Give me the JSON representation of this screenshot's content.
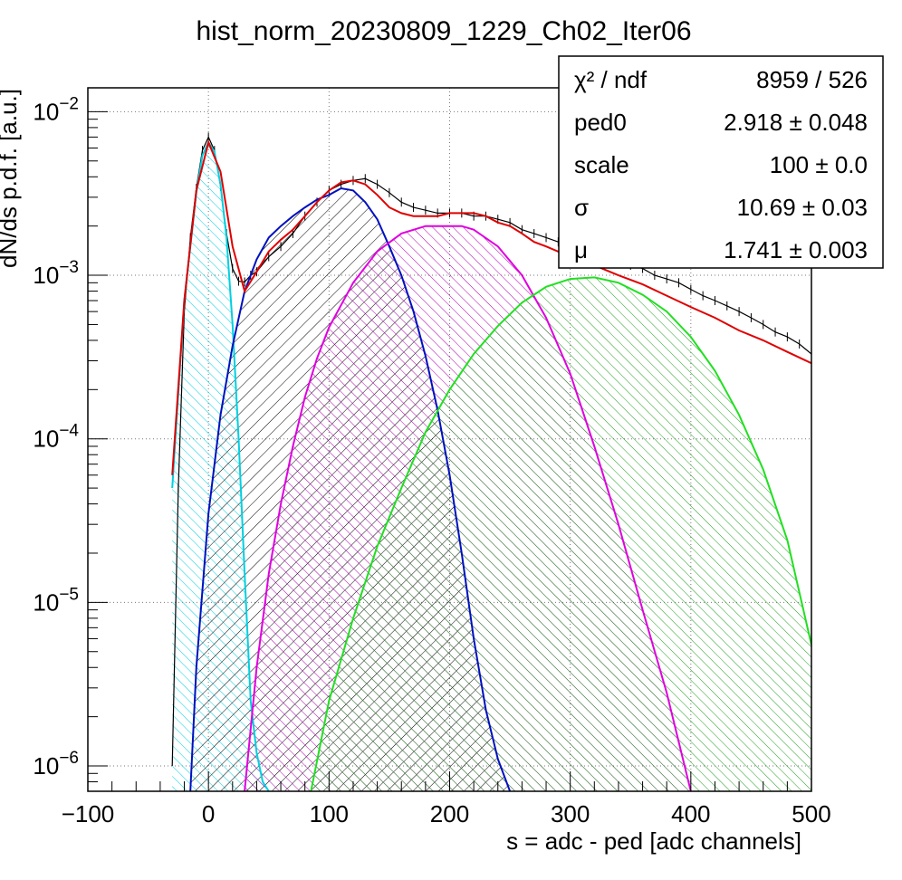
{
  "chart_data": {
    "type": "histogram_with_fit",
    "title": "hist_norm_20230809_1229_Ch02_Iter06",
    "xlabel": "s = adc - ped [adc channels]",
    "ylabel": "dN/ds p.d.f. [a.u.]",
    "xlim": [
      -100,
      500
    ],
    "ylim": [
      7e-07,
      0.014
    ],
    "yscale": "log",
    "grid": true,
    "x_ticks": [
      -100,
      0,
      100,
      200,
      300,
      400,
      500
    ],
    "x_tick_labels": [
      "−100",
      "0",
      "100",
      "200",
      "300",
      "400",
      "500"
    ],
    "y_ticks": [
      {
        "value": 1e-06,
        "mantissa": "10",
        "exponent": "−6"
      },
      {
        "value": 1e-05,
        "mantissa": "10",
        "exponent": "−5"
      },
      {
        "value": 0.0001,
        "mantissa": "10",
        "exponent": "−4"
      },
      {
        "value": 0.001,
        "mantissa": "10",
        "exponent": "−3"
      },
      {
        "value": 0.01,
        "mantissa": "10",
        "exponent": "−2"
      }
    ],
    "stats_box": {
      "placement": "top-right",
      "rows": [
        {
          "name": "χ² / ndf",
          "value": "8959 / 526"
        },
        {
          "name": "ped0",
          "value": "2.918 ± 0.048"
        },
        {
          "name": "scale",
          "value": "100 ± 0.0"
        },
        {
          "name": "σ",
          "value": "10.69 ± 0.03"
        },
        {
          "name": "μ",
          "value": "1.741 ± 0.003"
        }
      ]
    },
    "series": [
      {
        "kind": "histogram",
        "color": "#000000",
        "x": [
          -30,
          -25,
          -20,
          -15,
          -10,
          -5,
          0,
          5,
          10,
          15,
          20,
          25,
          30,
          35,
          40,
          50,
          60,
          70,
          80,
          90,
          100,
          110,
          120,
          130,
          140,
          150,
          160,
          170,
          180,
          190,
          200,
          210,
          220,
          230,
          240,
          250,
          260,
          270,
          280,
          290,
          300,
          310,
          320,
          330,
          340,
          350,
          360,
          370,
          380,
          390,
          400,
          410,
          420,
          430,
          440,
          450,
          460,
          470,
          480,
          490,
          500
        ],
        "y": [
          1e-06,
          5e-05,
          0.0006,
          0.0017,
          0.0034,
          0.0058,
          0.007,
          0.0058,
          0.0035,
          0.0018,
          0.0011,
          0.00092,
          0.00091,
          0.001,
          0.00105,
          0.0013,
          0.0015,
          0.0018,
          0.0023,
          0.0028,
          0.0033,
          0.0036,
          0.0038,
          0.0039,
          0.0036,
          0.0032,
          0.0028,
          0.0026,
          0.0025,
          0.0024,
          0.0024,
          0.0024,
          0.0023,
          0.0023,
          0.0022,
          0.0021,
          0.0019,
          0.0018,
          0.0017,
          0.0016,
          0.0015,
          0.00145,
          0.0014,
          0.0013,
          0.00125,
          0.00115,
          0.0011,
          0.001,
          0.00095,
          0.0009,
          0.00082,
          0.00075,
          0.0007,
          0.00065,
          0.0006,
          0.00055,
          0.0005,
          0.00045,
          0.00042,
          0.00038,
          0.00033
        ]
      },
      {
        "kind": "fit_total",
        "color": "#e00000",
        "x": [
          -30,
          -20,
          -10,
          0,
          10,
          20,
          30,
          40,
          50,
          60,
          70,
          80,
          90,
          100,
          110,
          120,
          130,
          140,
          150,
          160,
          170,
          180,
          190,
          200,
          210,
          220,
          230,
          240,
          250,
          260,
          270,
          280,
          300,
          320,
          340,
          360,
          380,
          400,
          420,
          440,
          460,
          480,
          500
        ],
        "y": [
          6e-05,
          0.0007,
          0.0033,
          0.0065,
          0.0043,
          0.0015,
          0.0008,
          0.00105,
          0.0014,
          0.00165,
          0.0019,
          0.0023,
          0.0028,
          0.0033,
          0.0037,
          0.0038,
          0.0036,
          0.0031,
          0.0026,
          0.0024,
          0.0023,
          0.0023,
          0.0023,
          0.0024,
          0.0024,
          0.0024,
          0.0023,
          0.0021,
          0.002,
          0.0018,
          0.0016,
          0.0015,
          0.0013,
          0.00115,
          0.001,
          0.00088,
          0.00075,
          0.00064,
          0.00055,
          0.00046,
          0.0004,
          0.00034,
          0.00029
        ]
      },
      {
        "kind": "component",
        "name": "",
        "color": "#00d0e0",
        "fill": "#00d0e0",
        "x": [
          -30,
          -20,
          -10,
          -5,
          0,
          5,
          10,
          15,
          20,
          25,
          30,
          35,
          40,
          45,
          50
        ],
        "y": [
          5e-05,
          0.0007,
          0.0032,
          0.0054,
          0.0065,
          0.0057,
          0.0036,
          0.0017,
          0.0005,
          0.0001,
          1.5e-05,
          2.5e-06,
          1.2e-06,
          8e-07,
          5e-07
        ]
      },
      {
        "kind": "component",
        "name": "",
        "color": "#0010c0",
        "fill": "#000000",
        "x": [
          -15,
          -10,
          0,
          10,
          20,
          30,
          40,
          50,
          60,
          70,
          80,
          90,
          100,
          110,
          120,
          130,
          140,
          150,
          160,
          170,
          180,
          190,
          200,
          210,
          220,
          230,
          240,
          250
        ],
        "y": [
          7e-07,
          4e-06,
          3.5e-05,
          0.00014,
          0.00037,
          0.0008,
          0.00125,
          0.0017,
          0.002,
          0.0023,
          0.0026,
          0.0029,
          0.0031,
          0.0034,
          0.0033,
          0.0028,
          0.0022,
          0.0015,
          0.001,
          0.0006,
          0.00032,
          0.00015,
          6e-05,
          2e-05,
          6e-06,
          2.2e-06,
          1.1e-06,
          7e-07
        ]
      },
      {
        "kind": "component",
        "name": "",
        "color": "#e000e0",
        "fill": "#c000c0",
        "x": [
          30,
          40,
          50,
          60,
          70,
          80,
          90,
          100,
          120,
          140,
          160,
          180,
          200,
          210,
          220,
          240,
          260,
          280,
          300,
          320,
          340,
          360,
          380,
          390,
          400
        ],
        "y": [
          7e-07,
          4e-06,
          1.5e-05,
          4e-05,
          9e-05,
          0.00018,
          0.00031,
          0.00048,
          0.0009,
          0.0014,
          0.0018,
          0.002,
          0.002,
          0.002,
          0.0019,
          0.0015,
          0.001,
          0.00055,
          0.00025,
          9e-05,
          3e-05,
          9e-06,
          2.8e-06,
          1.4e-06,
          7e-07
        ]
      },
      {
        "kind": "component",
        "name": "",
        "color": "#20e020",
        "fill": "#20a020",
        "x": [
          85,
          100,
          120,
          140,
          160,
          180,
          200,
          220,
          240,
          260,
          280,
          300,
          320,
          340,
          360,
          380,
          400,
          420,
          440,
          460,
          480,
          500
        ],
        "y": [
          7e-07,
          2.5e-06,
          8e-06,
          2.2e-05,
          5e-05,
          0.00011,
          0.0002,
          0.00033,
          0.00049,
          0.00068,
          0.00085,
          0.00095,
          0.00097,
          0.0009,
          0.00076,
          0.0006,
          0.00042,
          0.00026,
          0.00014,
          6.5e-05,
          2.4e-05,
          5.5e-06
        ]
      }
    ]
  }
}
